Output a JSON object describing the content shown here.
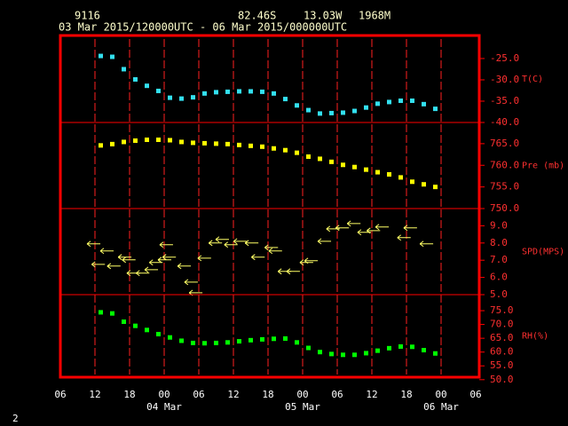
{
  "header": {
    "station": "9116",
    "latitude": "82.46S",
    "longitude": "13.03W",
    "elevation": "1968M",
    "period": "03 Mar 2015/120000UTC - 06 Mar 2015/000000UTC",
    "page_number": "2"
  },
  "chart_data": [
    {
      "type": "scatter",
      "x": [
        7,
        9,
        11,
        13,
        15,
        17,
        19,
        21,
        23,
        25,
        27,
        29,
        31,
        33,
        35,
        37,
        39,
        41,
        43,
        45,
        47,
        49,
        51,
        53,
        55,
        57,
        59,
        61,
        63,
        65
      ],
      "series": [
        {
          "name": "T(C)",
          "color": "#33e0f0",
          "values": [
            -24.4,
            -24.6,
            -27.5,
            -29.9,
            -31.4,
            -32.6,
            -34.2,
            -34.4,
            -34.1,
            -33.2,
            -32.9,
            -32.8,
            -32.7,
            -32.7,
            -32.8,
            -33.2,
            -34.5,
            -36.0,
            -37.1,
            -37.9,
            -37.8,
            -37.7,
            -37.3,
            -36.5,
            -35.6,
            -35.2,
            -34.9,
            -34.9,
            -35.7,
            -36.8
          ]
        }
      ],
      "ylim": [
        -40,
        -19.6
      ],
      "yticks": [
        {
          "value": -25,
          "label": "-25.0"
        },
        {
          "value": -30,
          "label": "-30.0"
        },
        {
          "value": -35,
          "label": "-35.0"
        },
        {
          "value": -40,
          "label": "-40.0"
        }
      ]
    },
    {
      "type": "scatter",
      "x": [
        7,
        9,
        11,
        13,
        15,
        17,
        19,
        21,
        23,
        25,
        27,
        29,
        31,
        33,
        35,
        37,
        39,
        41,
        43,
        45,
        47,
        49,
        51,
        53,
        55,
        57,
        59,
        61,
        63,
        65
      ],
      "series": [
        {
          "name": "Pre (mb)",
          "color": "#ffff00",
          "values": [
            764.6,
            764.9,
            765.4,
            765.7,
            765.9,
            765.9,
            765.8,
            765.4,
            765.2,
            765.1,
            765.0,
            764.9,
            764.7,
            764.5,
            764.3,
            763.9,
            763.5,
            762.9,
            762.0,
            761.5,
            760.8,
            760.1,
            759.6,
            759.0,
            758.4,
            757.9,
            757.2,
            756.2,
            755.6,
            755.0
          ]
        }
      ],
      "ylim": [
        750,
        769.9
      ],
      "yticks": [
        {
          "value": 765,
          "label": "765.0"
        },
        {
          "value": 760,
          "label": "760.0"
        },
        {
          "value": 755,
          "label": "755.0"
        },
        {
          "value": 750,
          "label": "750.0"
        }
      ]
    },
    {
      "type": "quiver",
      "x": [
        5.7,
        8.0,
        6.5,
        9.2,
        11.1,
        11.8,
        12.6,
        14.2,
        15.7,
        16.5,
        18.0,
        18.8,
        18.3,
        21.4,
        22.6,
        23.4,
        24.9,
        26.8,
        28.0,
        29.5,
        31.1,
        33.1,
        34.2,
        36.5,
        37.2,
        38.8,
        40.3,
        42.6,
        43.4,
        45.7,
        47.2,
        48.8,
        50.8,
        52.6,
        54.2,
        55.7,
        59.5,
        60.6,
        63.4
      ],
      "series": [
        {
          "name": "SPD(MPS)",
          "color": "#ffff66",
          "values": [
            7.95,
            7.54,
            6.76,
            6.66,
            7.18,
            7.02,
            6.25,
            6.25,
            6.45,
            6.87,
            7.02,
            7.18,
            7.9,
            6.66,
            5.73,
            5.11,
            7.12,
            8.0,
            8.21,
            7.9,
            8.1,
            8.0,
            7.18,
            7.74,
            7.54,
            6.35,
            6.35,
            6.87,
            6.97,
            8.1,
            8.82,
            8.88,
            9.13,
            8.62,
            8.72,
            8.93,
            8.31,
            8.88,
            7.95
          ]
        }
      ],
      "ylim": [
        5,
        10
      ],
      "yticks": [
        {
          "value": 9,
          "label": "9.0"
        },
        {
          "value": 8,
          "label": "8.0"
        },
        {
          "value": 7,
          "label": "7.0"
        },
        {
          "value": 6,
          "label": "6.0"
        },
        {
          "value": 5,
          "label": "5.0"
        }
      ]
    },
    {
      "type": "scatter",
      "x": [
        7,
        9,
        11,
        13,
        15,
        17,
        19,
        21,
        23,
        25,
        27,
        29,
        31,
        33,
        35,
        37,
        39,
        41,
        43,
        45,
        47,
        49,
        51,
        53,
        55,
        57,
        59,
        61,
        63,
        65
      ],
      "series": [
        {
          "name": "RH(%)",
          "color": "#00ff00",
          "values": [
            74.4,
            74.0,
            71.0,
            69.5,
            68.0,
            66.5,
            65.3,
            64.1,
            63.3,
            63.2,
            63.3,
            63.5,
            63.9,
            64.3,
            64.6,
            64.8,
            64.9,
            63.5,
            61.5,
            60.0,
            59.3,
            59.0,
            59.0,
            59.6,
            60.5,
            61.4,
            62.0,
            61.9,
            60.7,
            59.5
          ]
        }
      ],
      "ylim": [
        50.9,
        80.8
      ],
      "yticks": [
        {
          "value": 75,
          "label": "75.0"
        },
        {
          "value": 70,
          "label": "70.0"
        },
        {
          "value": 65,
          "label": "65.0"
        },
        {
          "value": 60,
          "label": "60.0"
        },
        {
          "value": 55,
          "label": "55.0"
        },
        {
          "value": 50,
          "label": "50.0"
        }
      ],
      "xlim": [
        0,
        72
      ],
      "xticks": [
        {
          "value": 0,
          "label": "06"
        },
        {
          "value": 6,
          "label": "12"
        },
        {
          "value": 12,
          "label": "18"
        },
        {
          "value": 18,
          "label": "00"
        },
        {
          "value": 24,
          "label": "06"
        },
        {
          "value": 30,
          "label": "12"
        },
        {
          "value": 36,
          "label": "18"
        },
        {
          "value": 42,
          "label": "00"
        },
        {
          "value": 48,
          "label": "06"
        },
        {
          "value": 54,
          "label": "12"
        },
        {
          "value": 60,
          "label": "18"
        },
        {
          "value": 66,
          "label": "00"
        },
        {
          "value": 72,
          "label": "06"
        }
      ],
      "date_ticks": [
        {
          "value": 18,
          "label": "04 Mar"
        },
        {
          "value": 42,
          "label": "05 Mar"
        },
        {
          "value": 66,
          "label": "06 Mar"
        }
      ]
    }
  ]
}
